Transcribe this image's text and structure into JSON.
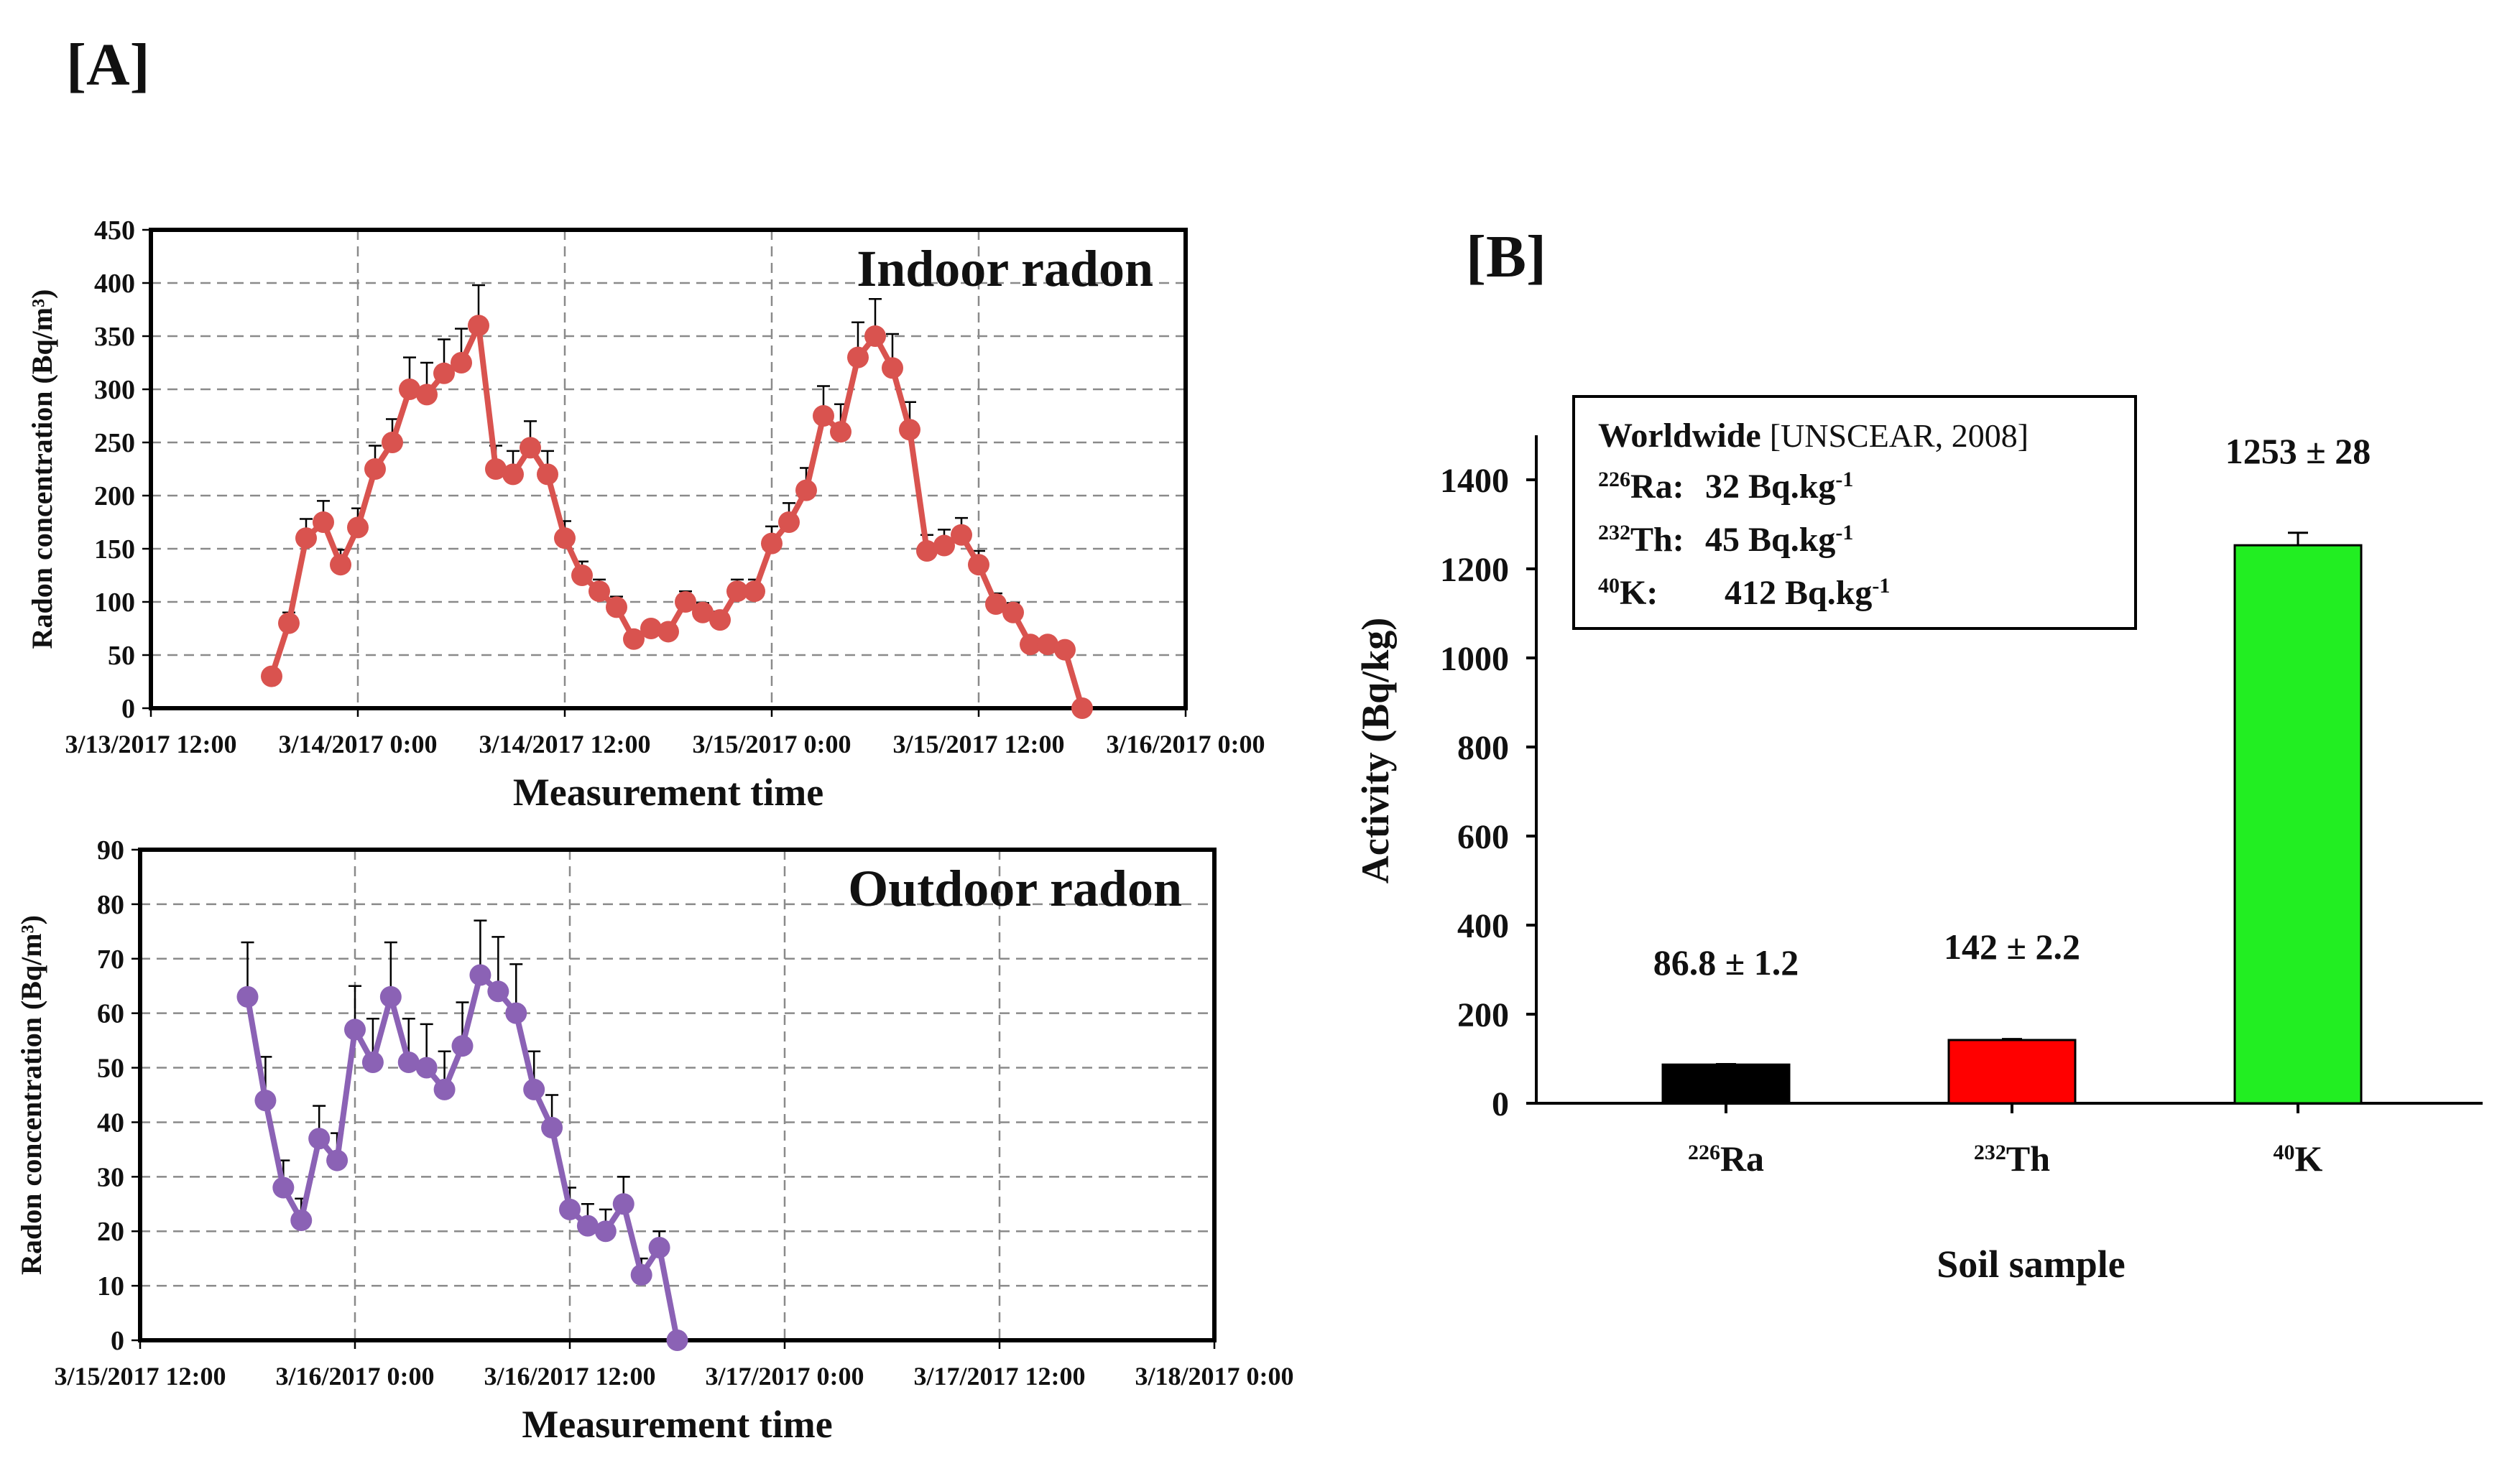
{
  "panel_a_label": "[A]",
  "panel_b_label": "[B]",
  "chart_data": [
    {
      "type": "line",
      "title": "Indoor radon",
      "xlabel": "Measurement time",
      "ylabel": "Radon concentration (Bq/m³)",
      "ylim": [
        0,
        450
      ],
      "yticks": [
        0,
        50,
        100,
        150,
        200,
        250,
        300,
        350,
        400,
        450
      ],
      "xlim_hours": [
        0,
        60
      ],
      "xticks_hours": [
        0,
        12,
        24,
        36,
        48,
        60
      ],
      "xtick_labels": [
        "3/13/2017 12:00",
        "3/14/2017 0:00",
        "3/14/2017 12:00",
        "3/15/2017 0:00",
        "3/15/2017 12:00",
        "3/16/2017 0:00"
      ],
      "grid": true,
      "color": "#d9534f",
      "series": [
        {
          "name": "Indoor radon",
          "x_hours": [
            7,
            8,
            9,
            10,
            11,
            12,
            13,
            14,
            15,
            16,
            17,
            18,
            19,
            20,
            21,
            22,
            23,
            24,
            25,
            26,
            27,
            28,
            29,
            30,
            31,
            32,
            33,
            34,
            35,
            36,
            37,
            38,
            39,
            40,
            41,
            42,
            43,
            44,
            45,
            46,
            47,
            48,
            49,
            50,
            51,
            52,
            53,
            54
          ],
          "values": [
            30,
            80,
            160,
            175,
            135,
            170,
            225,
            250,
            300,
            295,
            315,
            325,
            360,
            225,
            220,
            245,
            220,
            160,
            125,
            110,
            95,
            65,
            75,
            72,
            100,
            90,
            83,
            110,
            110,
            155,
            175,
            205,
            275,
            260,
            330,
            350,
            320,
            262,
            148,
            153,
            163,
            135,
            98,
            90,
            60,
            60,
            55,
            0
          ],
          "errors": [
            5,
            10,
            18,
            20,
            14,
            18,
            22,
            22,
            30,
            30,
            32,
            32,
            38,
            22,
            22,
            25,
            22,
            16,
            13,
            11,
            10,
            6,
            7,
            7,
            10,
            9,
            8,
            11,
            11,
            16,
            18,
            21,
            28,
            26,
            33,
            35,
            32,
            26,
            15,
            15,
            16,
            13,
            10,
            9,
            6,
            6,
            5,
            0
          ]
        }
      ]
    },
    {
      "type": "line",
      "title": "Outdoor radon",
      "xlabel": "Measurement time",
      "ylabel": "Radon concentration (Bq/m³)",
      "ylim": [
        0,
        90
      ],
      "yticks": [
        0,
        10,
        20,
        30,
        40,
        50,
        60,
        70,
        80,
        90
      ],
      "xlim_hours": [
        0,
        60
      ],
      "xticks_hours": [
        0,
        12,
        24,
        36,
        48,
        60
      ],
      "xtick_labels": [
        "3/15/2017 12:00",
        "3/16/2017 0:00",
        "3/16/2017 12:00",
        "3/17/2017 0:00",
        "3/17/2017 12:00",
        "3/18/2017 0:00"
      ],
      "grid": true,
      "color": "#8b62b5",
      "series": [
        {
          "name": "Outdoor radon",
          "x_hours": [
            6,
            7,
            8,
            9,
            10,
            11,
            12,
            13,
            14,
            15,
            16,
            17,
            18,
            19,
            20,
            21,
            22,
            23,
            24,
            25,
            26,
            27,
            28,
            29,
            30
          ],
          "values": [
            63,
            44,
            28,
            22,
            37,
            33,
            57,
            51,
            63,
            51,
            50,
            46,
            54,
            67,
            64,
            60,
            46,
            39,
            24,
            21,
            20,
            25,
            12,
            17,
            0
          ],
          "errors": [
            10,
            8,
            5,
            4,
            6,
            5,
            8,
            8,
            10,
            8,
            8,
            7,
            8,
            10,
            10,
            9,
            7,
            6,
            4,
            4,
            4,
            5,
            3,
            3,
            0
          ]
        }
      ]
    },
    {
      "type": "bar",
      "xlabel": "Soil sample",
      "ylabel": "Activity (Bq/kg)",
      "ylim": [
        0,
        1500
      ],
      "yticks": [
        0,
        200,
        400,
        600,
        800,
        1000,
        1200,
        1400
      ],
      "categories": [
        {
          "sup": "226",
          "base": "Ra"
        },
        {
          "sup": "232",
          "base": "Th"
        },
        {
          "sup": "40",
          "base": "K"
        }
      ],
      "values": [
        86.8,
        142,
        1253
      ],
      "errors": [
        1.2,
        2.2,
        28
      ],
      "value_labels": [
        "86.8 ± 1.2",
        "142 ± 2.2",
        "1253 ± 28"
      ],
      "colors": [
        "#000000",
        "#ff0000",
        "#22ee22"
      ],
      "legend": {
        "heading": "Worldwide",
        "reference": "[UNSCEAR, 2008]",
        "rows": [
          {
            "sup": "226",
            "base": "Ra:",
            "value": "32 Bq.kg",
            "exp": "-1"
          },
          {
            "sup": "232",
            "base": "Th:",
            "value": "45 Bq.kg",
            "exp": "-1"
          },
          {
            "sup": "40",
            "base": "K:",
            "value": "412 Bq.kg",
            "exp": "-1"
          }
        ]
      }
    }
  ]
}
